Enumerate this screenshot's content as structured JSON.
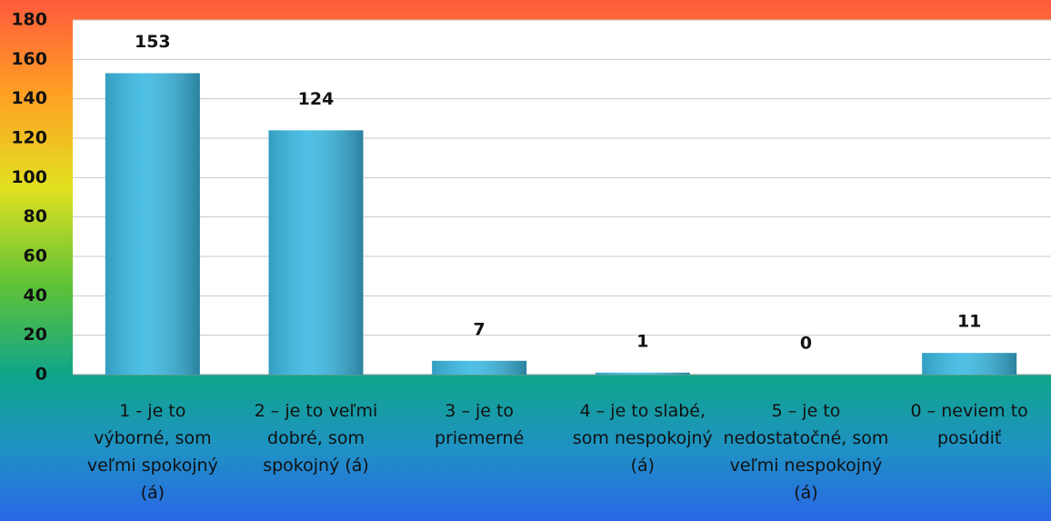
{
  "chart_data": {
    "type": "bar",
    "categories": [
      "1 - je to výborné, som veľmi spokojný (á)",
      "2 – je to veľmi dobré, som spokojný (á)",
      "3 – je to priemerné",
      "4 – je to slabé, som nespokojný (á)",
      "5 – je to nedostatočné, som veľmi nespokojný (á)",
      "0 – neviem to posúdiť"
    ],
    "values": [
      153,
      124,
      7,
      1,
      0,
      11
    ],
    "color": "#3bb9e2",
    "ylim": [
      0,
      180
    ],
    "yticks": [
      0,
      20,
      40,
      60,
      80,
      100,
      120,
      140,
      160,
      180
    ],
    "grid": true
  }
}
